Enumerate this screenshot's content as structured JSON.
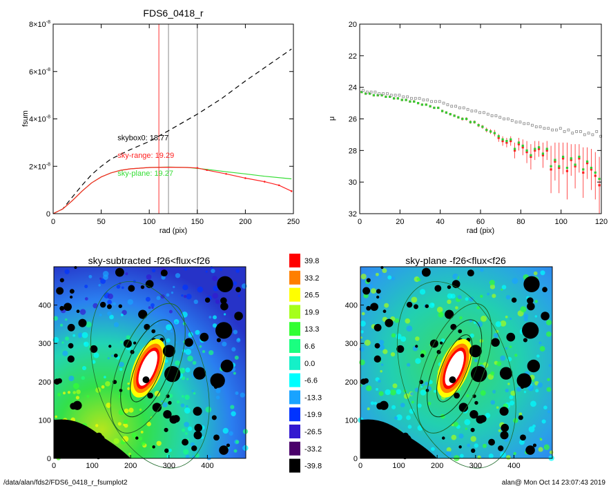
{
  "footer": {
    "left": "/data/alan/fds2/FDS6_0418_r_fsumplot2",
    "right": "alan@  Mon Oct 14 23:07:43 2019"
  },
  "colors": {
    "curve_main": "#cc3300",
    "curve_plane": "#33dd33",
    "curve_red": "#ff2a2a",
    "box_red": "#e03020",
    "ellipse": "#1e6a2a"
  },
  "chart_data": [
    {
      "type": "line",
      "title": "FDS6_0418_r",
      "xlabel": "rad (pix)",
      "ylabel": "fsum",
      "xlim": [
        0,
        250
      ],
      "ylim": [
        0,
        8e-08
      ],
      "xticks": [
        "0",
        "50",
        "100",
        "150",
        "200",
        "250"
      ],
      "yticks": [
        {
          "mant": "0",
          "exp": ""
        },
        {
          "mant": "2×10",
          "exp": "-8"
        },
        {
          "mant": "4×10",
          "exp": "-8"
        },
        {
          "mant": "6×10",
          "exp": "-8"
        },
        {
          "mant": "8×10",
          "exp": "-8"
        }
      ],
      "vlines": [
        {
          "x": 110,
          "color": "#ff3030"
        },
        {
          "x": 120,
          "color": "#888888"
        },
        {
          "x": 150,
          "color": "#888888"
        }
      ],
      "annotations": [
        {
          "text": "skybox0: 18.77",
          "color": "#000000",
          "x": 67,
          "y": 3.1e-08
        },
        {
          "text": "sky-range: 19.29",
          "color": "#ff2020",
          "x": 67,
          "y": 2.35e-08
        },
        {
          "text": "sky-plane: 19.27",
          "color": "#33dd33",
          "x": 67,
          "y": 1.6e-08
        }
      ],
      "series": [
        {
          "style": "dashed",
          "color": "#000000",
          "x": [
            0,
            10,
            20,
            30,
            40,
            50,
            60,
            80,
            100,
            120,
            150,
            175,
            200,
            225,
            248
          ],
          "y": [
            0,
            2e-09,
            7e-09,
            1.2e-08,
            1.65e-08,
            2e-08,
            2.3e-08,
            2.7e-08,
            3.05e-08,
            3.5e-08,
            4.2e-08,
            4.85e-08,
            5.6e-08,
            6.3e-08,
            6.95e-08
          ]
        },
        {
          "style": "solid",
          "color": "#33dd33",
          "x": [
            0,
            10,
            20,
            30,
            40,
            50,
            60,
            70,
            80,
            100,
            120,
            140,
            160,
            180,
            200,
            220,
            248
          ],
          "y": [
            0,
            2e-09,
            5.5e-09,
            9.5e-09,
            1.3e-08,
            1.55e-08,
            1.72e-08,
            1.83e-08,
            1.89e-08,
            1.95e-08,
            1.97e-08,
            1.95e-08,
            1.87e-08,
            1.77e-08,
            1.68e-08,
            1.58e-08,
            1.47e-08
          ]
        },
        {
          "style": "solid",
          "color": "#ff2020",
          "x": [
            0,
            10,
            20,
            30,
            40,
            50,
            60,
            70,
            80,
            100,
            120,
            140,
            150,
            160,
            180,
            200,
            220,
            235,
            248
          ],
          "y": [
            0,
            2e-09,
            5.5e-09,
            9.5e-09,
            1.3e-08,
            1.55e-08,
            1.72e-08,
            1.83e-08,
            1.89e-08,
            1.95e-08,
            1.96e-08,
            1.95e-08,
            1.93e-08,
            1.84e-08,
            1.68e-08,
            1.5e-08,
            1.35e-08,
            1.2e-08,
            9.5e-09
          ]
        }
      ]
    },
    {
      "type": "scatter",
      "xlabel": "rad (pix)",
      "ylabel": "μ",
      "xlim": [
        0,
        120
      ],
      "ylim": [
        32,
        20
      ],
      "xticks": [
        "0",
        "20",
        "40",
        "60",
        "80",
        "100",
        "120"
      ],
      "yticks": [
        "20",
        "22",
        "24",
        "26",
        "28",
        "30",
        "32"
      ],
      "series": [
        {
          "name": "sky-range",
          "color": "#ff2020",
          "x": [
            1,
            3,
            5,
            7,
            9,
            11,
            13,
            15,
            17,
            19,
            21,
            23,
            25,
            27,
            29,
            31,
            33,
            35,
            37,
            39,
            41,
            43,
            45,
            47,
            49,
            51,
            53,
            55,
            57,
            59,
            61,
            63,
            65,
            67,
            69,
            71,
            73,
            75,
            77,
            79,
            81,
            83,
            85,
            87,
            89,
            91,
            93,
            95,
            97,
            99,
            101,
            103,
            105,
            107,
            109,
            111,
            113,
            115,
            117,
            119
          ],
          "y": [
            24.3,
            24.4,
            24.4,
            24.5,
            24.5,
            24.5,
            24.6,
            24.6,
            24.7,
            24.7,
            24.8,
            24.8,
            24.9,
            24.9,
            25.0,
            25.1,
            25.1,
            25.2,
            25.3,
            25.3,
            25.5,
            25.6,
            25.7,
            25.8,
            25.9,
            26.0,
            26.0,
            26.2,
            26.2,
            26.4,
            26.5,
            26.7,
            26.8,
            26.9,
            27.2,
            27.4,
            27.5,
            27.4,
            28.0,
            27.6,
            27.8,
            28.1,
            28.4,
            28.0,
            27.9,
            28.3,
            28.0,
            29.2,
            28.7,
            29.1,
            28.5,
            29.3,
            28.6,
            29.0,
            28.5,
            29.4,
            28.8,
            29.2,
            29.6,
            30.2
          ],
          "err": [
            0.05,
            0.05,
            0.05,
            0.05,
            0.05,
            0.05,
            0.05,
            0.05,
            0.05,
            0.05,
            0.05,
            0.05,
            0.05,
            0.05,
            0.05,
            0.05,
            0.05,
            0.05,
            0.05,
            0.05,
            0.08,
            0.08,
            0.08,
            0.08,
            0.08,
            0.1,
            0.1,
            0.1,
            0.1,
            0.12,
            0.12,
            0.15,
            0.15,
            0.2,
            0.25,
            0.3,
            0.3,
            0.3,
            0.5,
            0.4,
            0.5,
            0.7,
            0.8,
            0.6,
            0.5,
            0.8,
            0.6,
            1.5,
            1.2,
            1.6,
            1.0,
            1.8,
            1.0,
            1.4,
            0.9,
            1.6,
            1.0,
            1.3,
            1.5,
            1.8
          ]
        },
        {
          "name": "sky-plane",
          "color": "#33cc33",
          "x": [
            1,
            3,
            5,
            7,
            9,
            11,
            13,
            15,
            17,
            19,
            21,
            23,
            25,
            27,
            29,
            31,
            33,
            35,
            37,
            39,
            41,
            43,
            45,
            47,
            49,
            51,
            53,
            55,
            57,
            59,
            61,
            63,
            65,
            67,
            69,
            71,
            73,
            75,
            77,
            79,
            81,
            83,
            85,
            87,
            89,
            91,
            93,
            95,
            97,
            99,
            101,
            103,
            105,
            107,
            109,
            111,
            113,
            115,
            117,
            119
          ],
          "y": [
            24.3,
            24.4,
            24.4,
            24.5,
            24.5,
            24.5,
            24.6,
            24.6,
            24.7,
            24.7,
            24.8,
            24.8,
            24.9,
            24.9,
            25.0,
            25.1,
            25.1,
            25.2,
            25.3,
            25.3,
            25.5,
            25.6,
            25.7,
            25.8,
            25.9,
            26.0,
            26.0,
            26.2,
            26.2,
            26.4,
            26.5,
            26.7,
            26.8,
            26.9,
            27.1,
            27.3,
            27.4,
            27.3,
            27.9,
            27.5,
            27.7,
            28.0,
            28.3,
            27.9,
            27.8,
            28.2,
            27.9,
            29.0,
            28.6,
            29.0,
            28.4,
            29.1,
            28.5,
            28.9,
            28.4,
            29.2,
            28.7,
            29.1,
            29.4,
            29.8
          ],
          "err": []
        },
        {
          "name": "skybox0",
          "color": "#888888",
          "x": [
            1,
            3,
            5,
            7,
            9,
            11,
            13,
            15,
            17,
            19,
            21,
            23,
            25,
            27,
            29,
            31,
            33,
            35,
            37,
            39,
            41,
            43,
            45,
            47,
            49,
            51,
            53,
            55,
            57,
            59,
            61,
            63,
            65,
            67,
            69,
            71,
            73,
            75,
            77,
            79,
            81,
            83,
            85,
            87,
            89,
            91,
            93,
            95,
            97,
            99,
            101,
            103,
            105,
            107,
            109,
            111,
            113,
            115,
            117,
            119
          ],
          "y": [
            24.2,
            24.3,
            24.3,
            24.3,
            24.4,
            24.4,
            24.4,
            24.5,
            24.5,
            24.5,
            24.6,
            24.6,
            24.7,
            24.7,
            24.7,
            24.8,
            24.8,
            24.9,
            24.9,
            24.9,
            25.0,
            25.1,
            25.2,
            25.2,
            25.3,
            25.3,
            25.4,
            25.5,
            25.5,
            25.6,
            25.6,
            25.7,
            25.8,
            25.8,
            25.9,
            26.0,
            26.0,
            26.1,
            26.2,
            26.2,
            26.3,
            26.3,
            26.4,
            26.5,
            26.5,
            26.6,
            26.6,
            26.7,
            26.7,
            26.6,
            26.8,
            26.7,
            26.9,
            26.8,
            26.8,
            27.0,
            26.9,
            27.0,
            26.8,
            27.1
          ],
          "err": []
        }
      ]
    },
    {
      "type": "heatmap",
      "title": "sky-subtracted -f26<flux<f26",
      "xlim": [
        0,
        500
      ],
      "ylim": [
        0,
        500
      ],
      "xticks": [
        "0",
        "100",
        "200",
        "300",
        "400"
      ],
      "yticks": [
        "0",
        "100",
        "200",
        "300",
        "400"
      ],
      "gradient": "left-bottom warm"
    },
    {
      "type": "heatmap",
      "title": "sky-plane -f26<flux<f26",
      "xlim": [
        0,
        500
      ],
      "ylim": [
        0,
        500
      ],
      "xticks": [
        "0",
        "100",
        "200",
        "300",
        "400"
      ],
      "yticks": [
        "0",
        "100",
        "200",
        "300",
        "400"
      ],
      "gradient": "flat"
    }
  ],
  "colorbar": {
    "labels": [
      "39.8",
      "33.2",
      "26.5",
      "19.9",
      "13.3",
      "6.6",
      "0.0",
      "-6.6",
      "-13.3",
      "-19.9",
      "-26.5",
      "-33.2",
      "-39.8"
    ],
    "colors": [
      "#ff0000",
      "#ff7f00",
      "#ffff00",
      "#a6ff1a",
      "#33ff33",
      "#1aff80",
      "#14f0c8",
      "#00ffff",
      "#19a3ff",
      "#0033ff",
      "#3319d0",
      "#4a006a",
      "#000000"
    ]
  }
}
